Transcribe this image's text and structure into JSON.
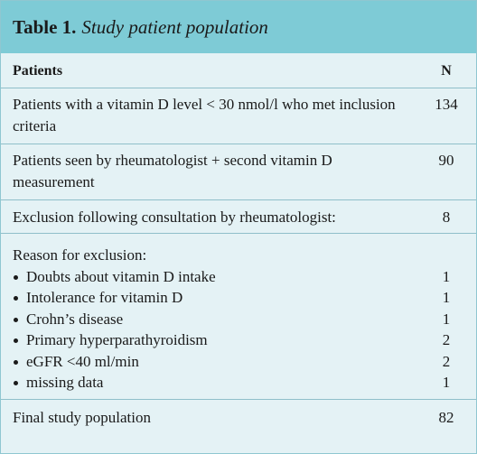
{
  "title": {
    "label": "Table 1.",
    "text": "Study patient population"
  },
  "header": [
    "Patients",
    "N"
  ],
  "rows": [
    [
      "Patients with a vitamin D level < 30 nmol/l who met inclusion criteria",
      "134"
    ],
    [
      "Patients seen by rheumatologist + second vitamin D measurement",
      "90"
    ],
    [
      "Exclusion following consultation by rheumatologist:",
      "8"
    ]
  ],
  "exclusion": {
    "heading": "Reason for exclusion:",
    "items": [
      [
        "Doubts about vitamin D intake",
        "1"
      ],
      [
        "Intolerance for vitamin D",
        "1"
      ],
      [
        "Crohn’s disease",
        "1"
      ],
      [
        "Primary hyperparathyroidism",
        "2"
      ],
      [
        "eGFR <40 ml/min",
        "2"
      ],
      [
        "missing data",
        "1"
      ]
    ]
  },
  "final": [
    "Final study population",
    "82"
  ]
}
